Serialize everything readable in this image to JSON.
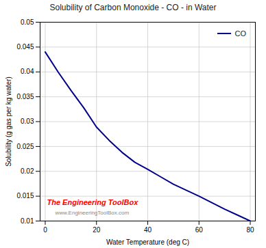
{
  "chart_data": {
    "type": "line",
    "title": "Solubility of Carbon Monoxide - CO - in Water",
    "xlabel": "Water Temperature (deg C)",
    "ylabel": "Solubility (g gas per kg water)",
    "x": [
      0,
      5,
      10,
      15,
      20,
      25,
      30,
      35,
      40,
      45,
      50,
      55,
      60,
      65,
      70,
      75,
      80
    ],
    "series": [
      {
        "name": "CO",
        "color": "#00008B",
        "values": [
          0.044,
          0.04,
          0.0363,
          0.0328,
          0.0289,
          0.0262,
          0.0238,
          0.0218,
          0.0204,
          0.0189,
          0.0174,
          0.0162,
          0.015,
          0.0137,
          0.0124,
          0.0112,
          0.01
        ]
      }
    ],
    "xlim": [
      -2,
      82
    ],
    "ylim": [
      0.01,
      0.05
    ],
    "xticks": [
      0,
      20,
      40,
      60,
      80
    ],
    "yticks": [
      0.01,
      0.015,
      0.02,
      0.025,
      0.03,
      0.035,
      0.04,
      0.045,
      0.05
    ],
    "grid": true,
    "legend": "upper right",
    "annotations": [
      {
        "text": "The Engineering ToolBox",
        "color": "#ff0000"
      },
      {
        "text": "www.EngineeringToolBox.com",
        "color": "#888888"
      }
    ]
  }
}
